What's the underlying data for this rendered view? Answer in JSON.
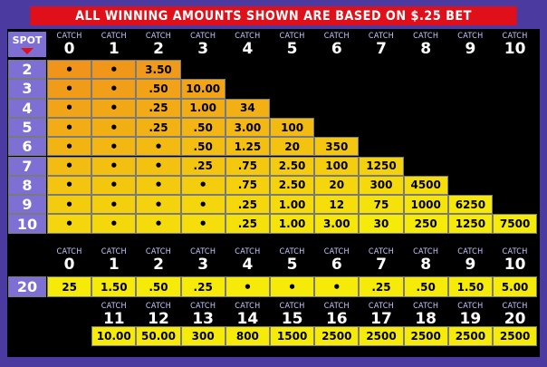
{
  "banner": "ALL WINNING AMOUNTS SHOWN ARE BASED ON $.25 BET",
  "catch_word": "CATCH",
  "spot_header": "SPOT",
  "catch_cols": [
    "0",
    "1",
    "2",
    "3",
    "4",
    "5",
    "6",
    "7",
    "8",
    "9",
    "10"
  ],
  "rows": [
    {
      "spot": "2",
      "cells": [
        "•",
        "•",
        "3.50"
      ]
    },
    {
      "spot": "3",
      "cells": [
        "•",
        "•",
        ".50",
        "10.00"
      ]
    },
    {
      "spot": "4",
      "cells": [
        "•",
        "•",
        ".25",
        "1.00",
        "34"
      ]
    },
    {
      "spot": "5",
      "cells": [
        "•",
        "•",
        ".25",
        ".50",
        "3.00",
        "100"
      ]
    },
    {
      "spot": "6",
      "cells": [
        "•",
        "•",
        "•",
        ".50",
        "1.25",
        "20",
        "350"
      ]
    },
    {
      "spot": "7",
      "cells": [
        "•",
        "•",
        "•",
        ".25",
        ".75",
        "2.50",
        "100",
        "1250"
      ]
    },
    {
      "spot": "8",
      "cells": [
        "•",
        "•",
        "•",
        "•",
        ".75",
        "2.50",
        "20",
        "300",
        "4500"
      ]
    },
    {
      "spot": "9",
      "cells": [
        "•",
        "•",
        "•",
        "•",
        ".25",
        "1.00",
        "12",
        "75",
        "1000",
        "6250"
      ]
    },
    {
      "spot": "10",
      "cells": [
        "•",
        "•",
        "•",
        "•",
        ".25",
        "1.00",
        "3.00",
        "30",
        "250",
        "1250",
        "7500"
      ]
    }
  ],
  "spot20": {
    "spot": "20",
    "catch_cols_a": [
      "0",
      "1",
      "2",
      "3",
      "4",
      "5",
      "6",
      "7",
      "8",
      "9",
      "10"
    ],
    "cells_a": [
      "25",
      "1.50",
      ".50",
      ".25",
      "•",
      "•",
      "•",
      ".25",
      ".50",
      "1.50",
      "5.00"
    ],
    "catch_cols_b": [
      "11",
      "12",
      "13",
      "14",
      "15",
      "16",
      "17",
      "18",
      "19",
      "20"
    ],
    "cells_b": [
      "10.00",
      "50.00",
      "300",
      "800",
      "1500",
      "2500",
      "2500",
      "2500",
      "2500",
      "2500"
    ]
  },
  "colors": {
    "spot_bg": "#7d6fd3",
    "banner_bg": "#e0101a",
    "orange": "#f0941a",
    "yellow": "#f6ea08"
  }
}
